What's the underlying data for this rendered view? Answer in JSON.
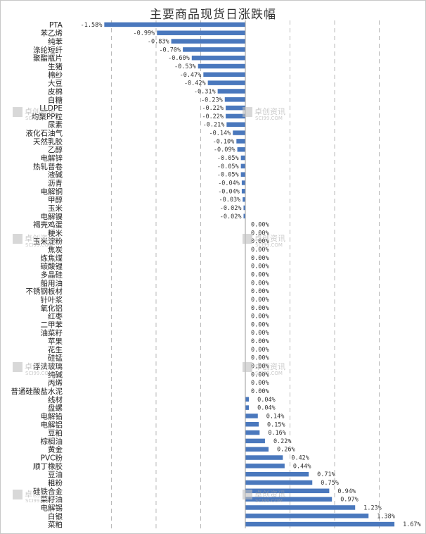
{
  "chart_data": {
    "type": "bar",
    "orientation": "horizontal",
    "title": "主要商品现货日涨跌幅",
    "xlabel": "",
    "ylabel": "",
    "xlim": [
      -2.0,
      2.0
    ],
    "grid": "vertical-dashed",
    "legend": "none",
    "value_format": "percent-2dp",
    "bar_color": "#4a78bd",
    "categories": [
      "PTA",
      "苯乙烯",
      "纯苯",
      "涤纶短纤",
      "聚酯瓶片",
      "生猪",
      "棉纱",
      "大豆",
      "皮棉",
      "白糖",
      "LLDPE",
      "均聚PP粒",
      "尿素",
      "液化石油气",
      "天然乳胶",
      "乙醇",
      "电解锌",
      "热轧普卷",
      "液碱",
      "沥青",
      "电解铜",
      "甲醇",
      "玉米",
      "电解镍",
      "褐壳鸡蛋",
      "粳米",
      "玉米淀粉",
      "焦炭",
      "炼焦煤",
      "碳酸锂",
      "多晶硅",
      "船用油",
      "不锈钢板材",
      "针叶浆",
      "氧化铝",
      "红枣",
      "二甲苯",
      "油菜籽",
      "苹果",
      "花生",
      "硅锰",
      "浮法玻璃",
      "纯碱",
      "丙烯",
      "普通硅酸盐水泥",
      "线材",
      "盘螺",
      "电解铅",
      "电解铝",
      "豆粕",
      "棕榈油",
      "黄金",
      "PVC粉",
      "顺丁橡胶",
      "豆油",
      "粗粉",
      "硅铁合金",
      "菜籽油",
      "电解锡",
      "白银",
      "菜粕"
    ],
    "values": [
      -1.58,
      -0.99,
      -0.83,
      -0.7,
      -0.6,
      -0.53,
      -0.47,
      -0.42,
      -0.31,
      -0.23,
      -0.22,
      -0.22,
      -0.21,
      -0.14,
      -0.1,
      -0.09,
      -0.05,
      -0.05,
      -0.05,
      -0.04,
      -0.04,
      -0.03,
      -0.02,
      -0.02,
      0.0,
      0.0,
      0.0,
      0.0,
      0.0,
      0.0,
      0.0,
      0.0,
      0.0,
      0.0,
      0.0,
      0.0,
      0.0,
      0.0,
      0.0,
      0.0,
      0.0,
      0.0,
      0.0,
      0.0,
      0.0,
      0.04,
      0.04,
      0.14,
      0.15,
      0.16,
      0.22,
      0.26,
      0.42,
      0.44,
      0.71,
      0.75,
      0.94,
      0.97,
      1.23,
      1.38,
      1.67
    ],
    "labels": [
      "-1.58%",
      "-0.99%",
      "-0.83%",
      "-0.70%",
      "-0.60%",
      "-0.53%",
      "-0.47%",
      "-0.42%",
      "-0.31%",
      "-0.23%",
      "-0.22%",
      "-0.22%",
      "-0.21%",
      "-0.14%",
      "-0.10%",
      "-0.09%",
      "-0.05%",
      "-0.05%",
      "-0.05%",
      "-0.04%",
      "-0.04%",
      "-0.03%",
      "-0.02%",
      "-0.02%",
      "0.00%",
      "0.00%",
      "0.00%",
      "0.00%",
      "0.00%",
      "0.00%",
      "0.00%",
      "0.00%",
      "0.00%",
      "0.00%",
      "0.00%",
      "0.00%",
      "0.00%",
      "0.00%",
      "0.00%",
      "0.00%",
      "0.00%",
      "0.00%",
      "0.00%",
      "0.00%",
      "0.00%",
      "0.04%",
      "0.04%",
      "0.14%",
      "0.15%",
      "0.16%",
      "0.22%",
      "0.26%",
      "0.42%",
      "0.44%",
      "0.71%",
      "0.75%",
      "0.94%",
      "0.97%",
      "1.23%",
      "1.38%",
      "1.67%"
    ]
  },
  "watermark": {
    "text": "卓创资讯",
    "sub": "SCI99.COM"
  }
}
